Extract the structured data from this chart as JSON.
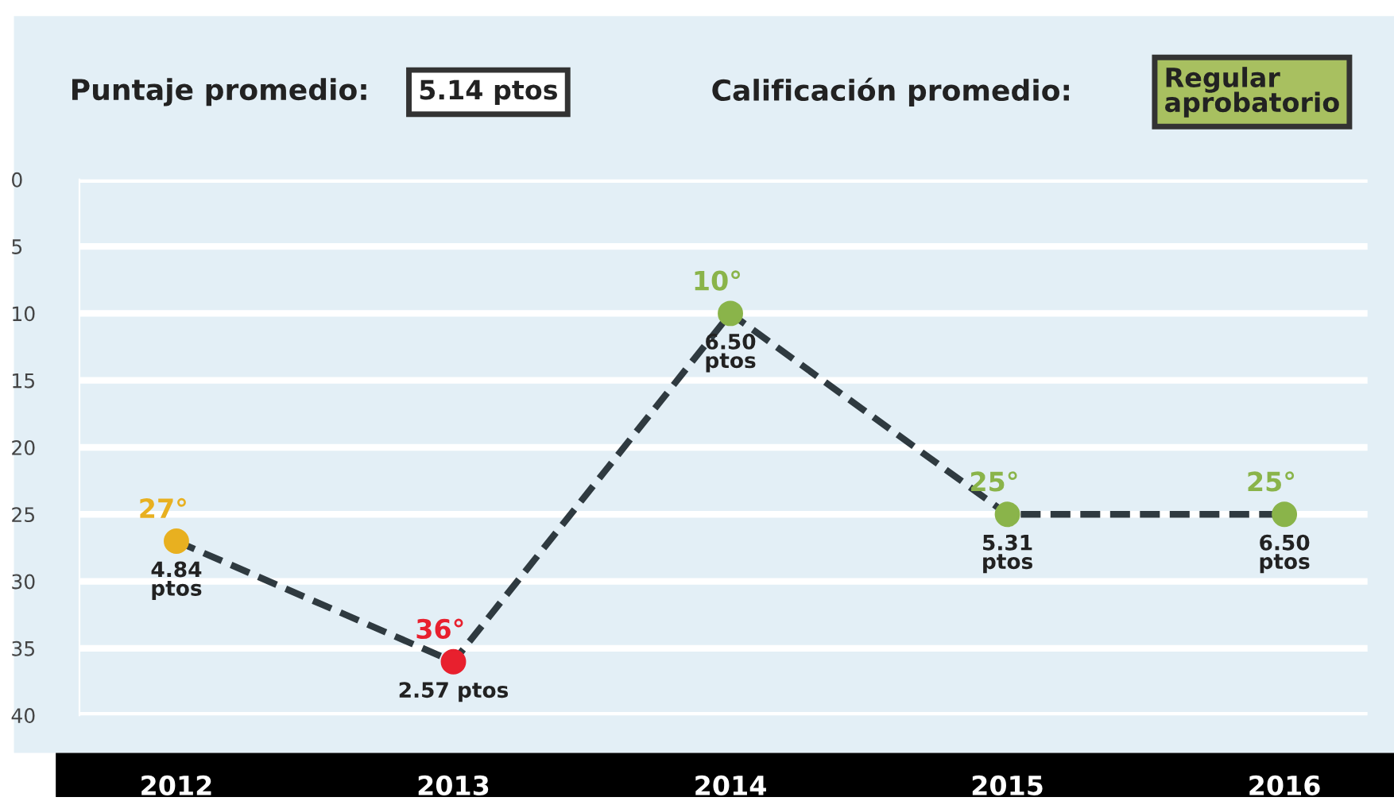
{
  "chart_data": {
    "type": "line",
    "categories": [
      "2012",
      "2013",
      "2014",
      "2015",
      "2016"
    ],
    "series": [
      {
        "color": "#2f3a40",
        "colors": [
          "#e8b020",
          "#e8202e",
          "#8ab44a",
          "#8ab44a",
          "#8ab44a"
        ],
        "values": [
          27,
          36,
          10,
          25,
          25
        ],
        "value_labels": [
          "27°",
          "36°",
          "10°",
          "25°",
          "25°"
        ]
      }
    ],
    "ylim": [
      40,
      0
    ],
    "yticks": [
      0,
      5,
      10,
      15,
      20,
      25,
      30,
      35,
      40
    ],
    "grid": "y",
    "legend": false,
    "marker": "circle",
    "line_style": "dashed",
    "annotations": [
      "Puntaje promedio:",
      "5.14 ptos",
      "Calificación promedio:",
      "Regular\naprobatorio",
      {
        "text": "4.84\nptos",
        "x": "2012",
        "y": 27
      },
      {
        "text": "2.57 ptos",
        "x": "2013",
        "y": 36
      },
      {
        "text": "6.50\nptos",
        "x": "2014",
        "y": 10
      },
      {
        "text": "5.31\nptos",
        "x": "2015",
        "y": 25
      },
      {
        "text": "6.50\nptos",
        "x": "2016",
        "y": 25
      }
    ]
  }
}
